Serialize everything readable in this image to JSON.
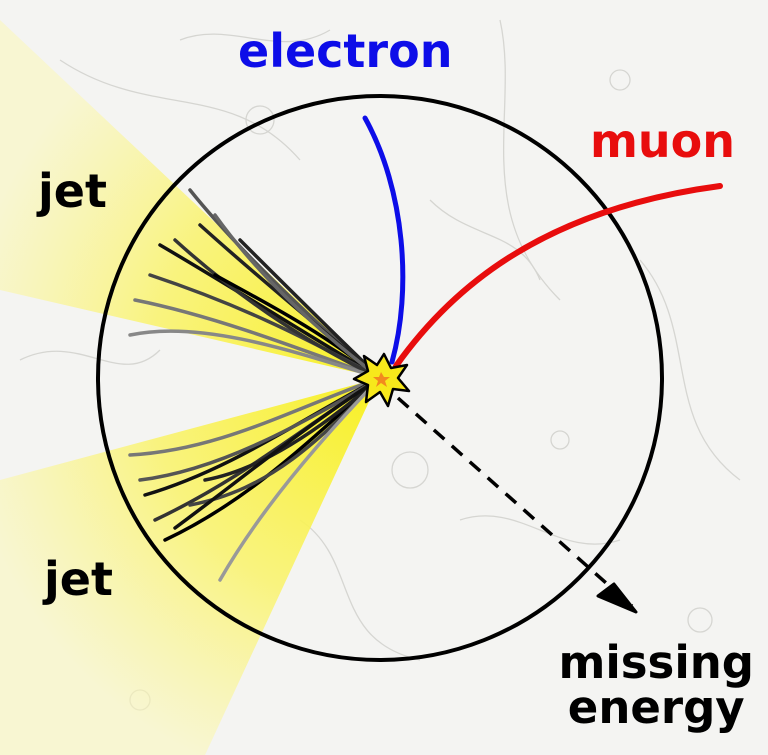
{
  "labels": {
    "electron": "electron",
    "muon": "muon",
    "jet_top": "jet",
    "jet_bottom": "jet",
    "missing_line1": "missing",
    "missing_line2": "energy"
  },
  "colors": {
    "electron": "#0d0de8",
    "muon": "#e80d0d",
    "jet_cone": "#fbf23a",
    "detector": "#000000",
    "vertex_star": "#f7e81b"
  }
}
